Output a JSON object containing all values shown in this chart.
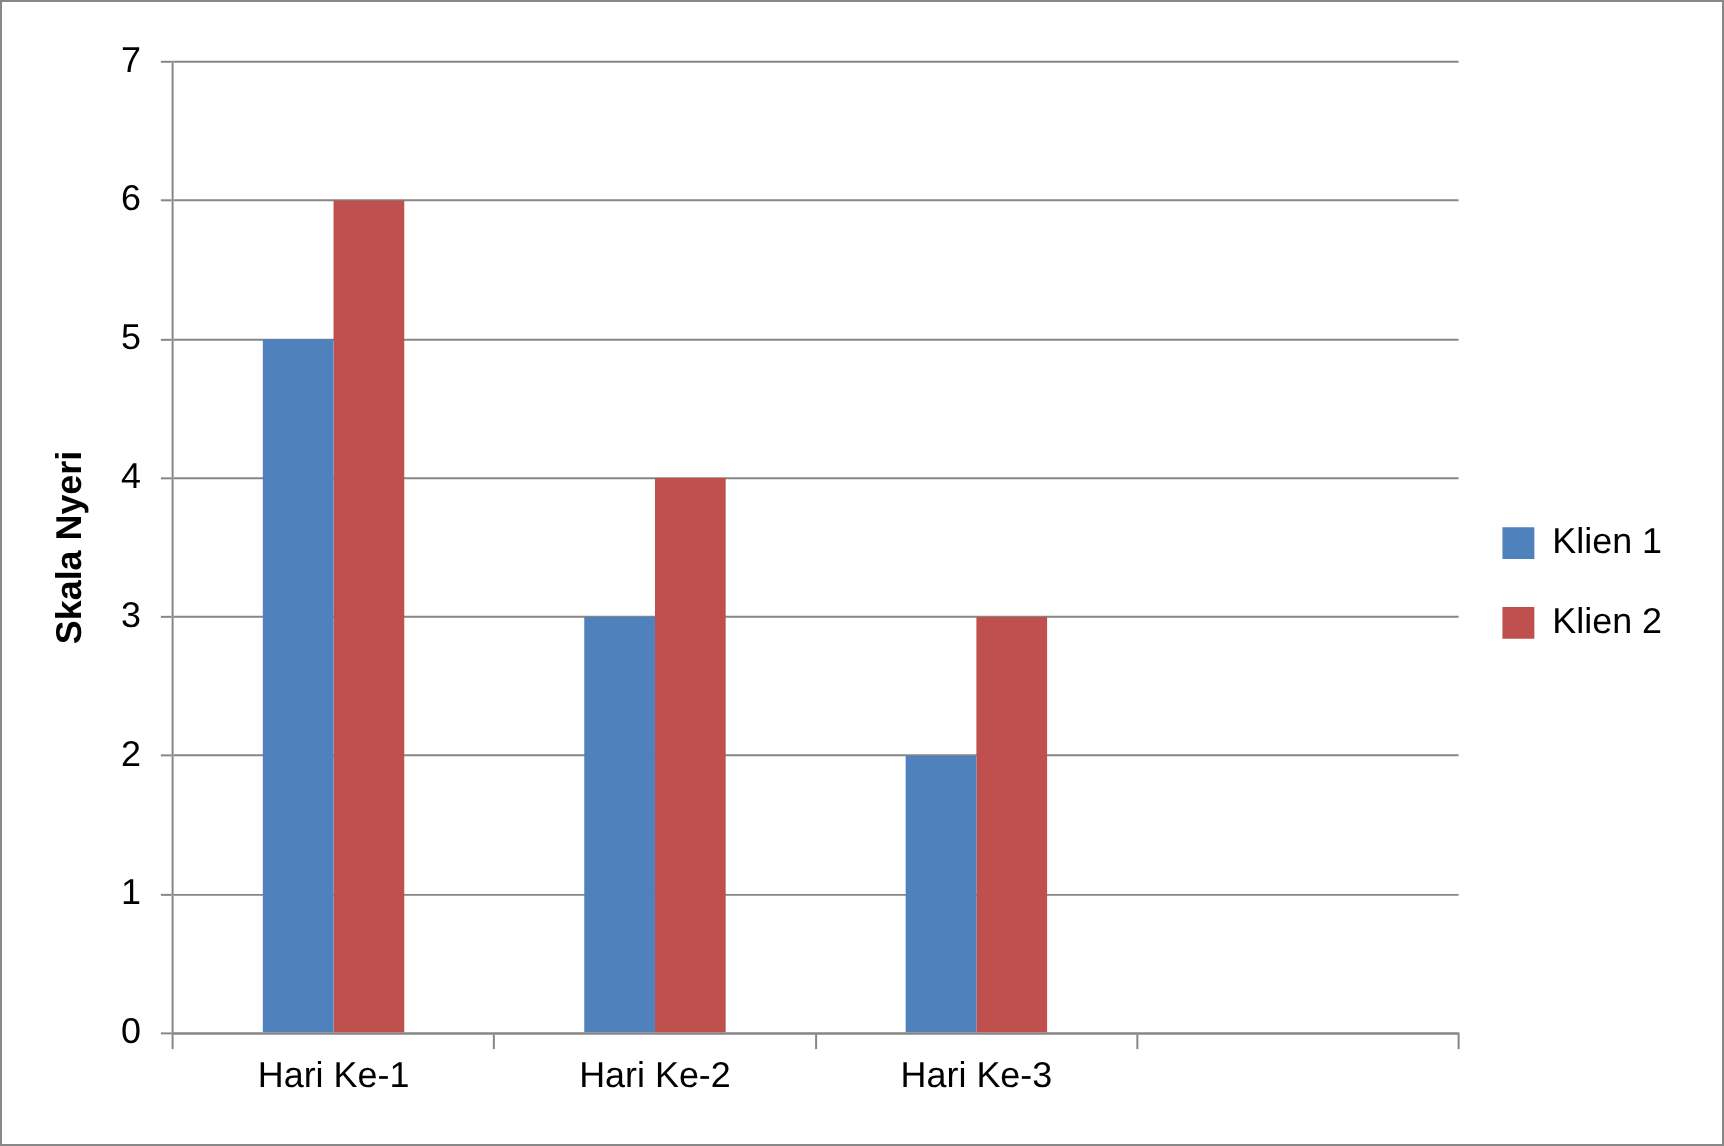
{
  "chart_data": {
    "type": "bar",
    "ylabel": "Skala Nyeri",
    "categories": [
      "Hari Ke-1",
      "Hari Ke-2",
      "Hari Ke-3",
      null
    ],
    "series": [
      {
        "name": "Klien 1",
        "color": "#4f81bd",
        "values": [
          5,
          3,
          2,
          null
        ]
      },
      {
        "name": "Klien 2",
        "color": "#c0504d",
        "values": [
          6,
          4,
          3,
          null
        ]
      }
    ],
    "ylim": [
      0,
      7
    ],
    "yticks": [
      0,
      1,
      2,
      3,
      4,
      5,
      6,
      7
    ],
    "grid": "y",
    "legend": "right"
  }
}
